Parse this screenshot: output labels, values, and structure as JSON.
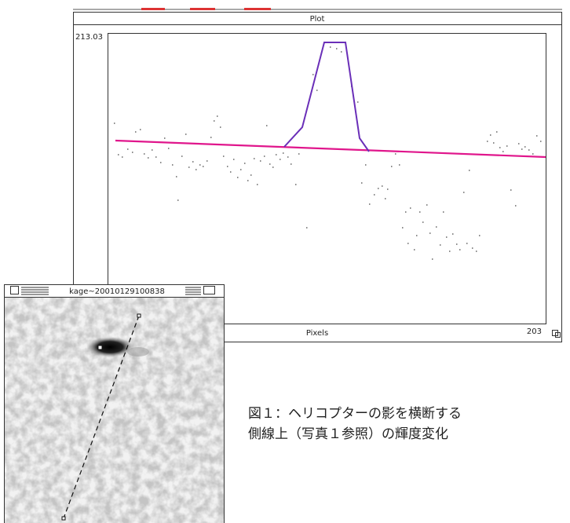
{
  "plot_window": {
    "title": "Plot",
    "y_max_label": "213.03",
    "x_label": "Pixels",
    "x_max_label": "203"
  },
  "image_window": {
    "title": "kage~20010129100838"
  },
  "caption": {
    "lines": [
      "図１：ヘリコプターの影を横断する",
      "側線上（写真１参照）の輝度変化"
    ]
  }
}
